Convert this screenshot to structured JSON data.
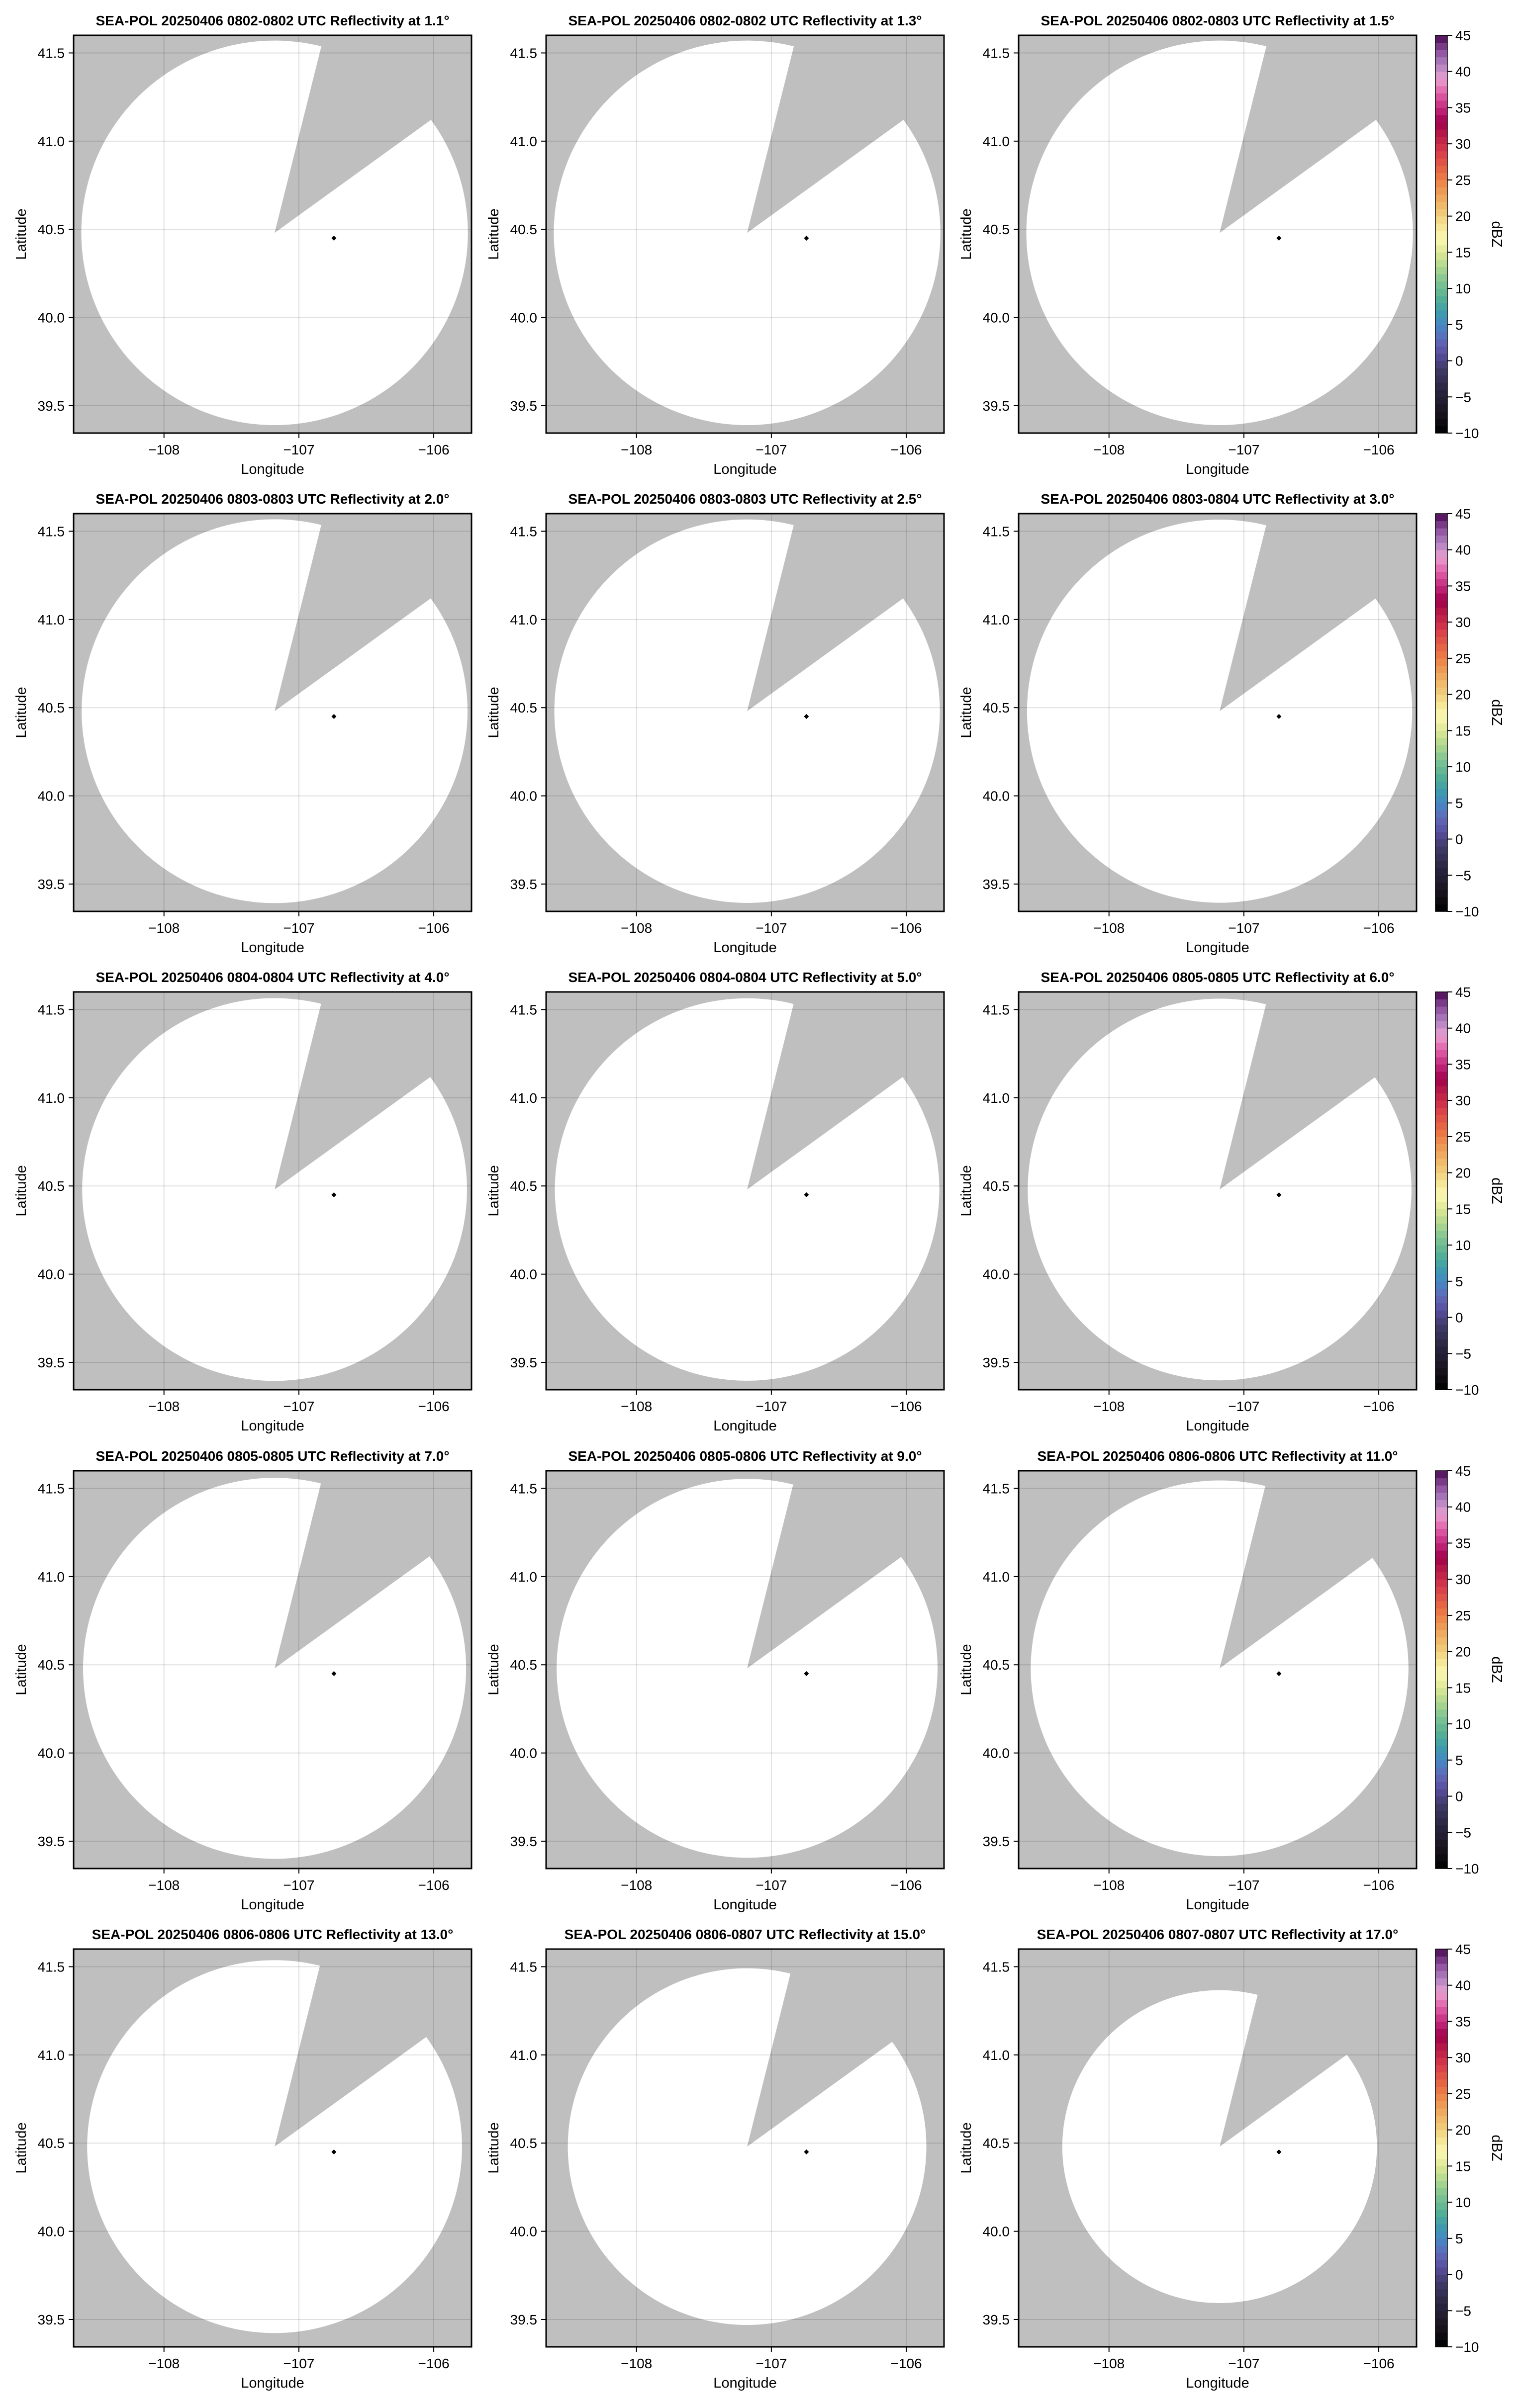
{
  "chart_data": {
    "type": "heatmap",
    "layout": {
      "rows": 5,
      "cols": 3
    },
    "xlabel": "Longitude",
    "ylabel": "Latitude",
    "xlim": [
      -108.67,
      -105.72
    ],
    "ylim": [
      39.345,
      41.6
    ],
    "xticks": [
      -108,
      -107,
      -106
    ],
    "xtick_labels": [
      "−108",
      "−107",
      "−106"
    ],
    "yticks": [
      39.5,
      40.0,
      40.5,
      41.0,
      41.5
    ],
    "ytick_labels": [
      "39.5",
      "40.0",
      "40.5",
      "41.0",
      "41.5"
    ],
    "grid": true,
    "missing_color": "#bfbfbf",
    "coverage_color": "#ffffff",
    "coverage_center": [
      -107.18,
      40.48
    ],
    "blocked_sector_azimuth_deg": [
      14,
      54
    ],
    "marker": {
      "lon": -106.74,
      "lat": 40.45,
      "shape": "diamond",
      "color": "#000000"
    },
    "panels": [
      {
        "title": "SEA-POL 20250406 0802-0802 UTC Reflectivity at 1.1°",
        "elevation": 1.1,
        "range_deg_lat": 1.09,
        "colorbar": false
      },
      {
        "title": "SEA-POL 20250406 0802-0802 UTC Reflectivity at 1.3°",
        "elevation": 1.3,
        "range_deg_lat": 1.09,
        "colorbar": false
      },
      {
        "title": "SEA-POL 20250406 0802-0803 UTC Reflectivity at 1.5°",
        "elevation": 1.5,
        "range_deg_lat": 1.09,
        "colorbar": true
      },
      {
        "title": "SEA-POL 20250406 0803-0803 UTC Reflectivity at 2.0°",
        "elevation": 2.0,
        "range_deg_lat": 1.088,
        "colorbar": false
      },
      {
        "title": "SEA-POL 20250406 0803-0803 UTC Reflectivity at 2.5°",
        "elevation": 2.5,
        "range_deg_lat": 1.087,
        "colorbar": false
      },
      {
        "title": "SEA-POL 20250406 0803-0804 UTC Reflectivity at 3.0°",
        "elevation": 3.0,
        "range_deg_lat": 1.086,
        "colorbar": true
      },
      {
        "title": "SEA-POL 20250406 0804-0804 UTC Reflectivity at 4.0°",
        "elevation": 4.0,
        "range_deg_lat": 1.085,
        "colorbar": false
      },
      {
        "title": "SEA-POL 20250406 0804-0804 UTC Reflectivity at 5.0°",
        "elevation": 5.0,
        "range_deg_lat": 1.084,
        "colorbar": false
      },
      {
        "title": "SEA-POL 20250406 0805-0805 UTC Reflectivity at 6.0°",
        "elevation": 6.0,
        "range_deg_lat": 1.082,
        "colorbar": true
      },
      {
        "title": "SEA-POL 20250406 0805-0805 UTC Reflectivity at 7.0°",
        "elevation": 7.0,
        "range_deg_lat": 1.08,
        "colorbar": false
      },
      {
        "title": "SEA-POL 20250406 0805-0806 UTC Reflectivity at 9.0°",
        "elevation": 9.0,
        "range_deg_lat": 1.074,
        "colorbar": false
      },
      {
        "title": "SEA-POL 20250406 0806-0806 UTC Reflectivity at 11.0°",
        "elevation": 11.0,
        "range_deg_lat": 1.065,
        "colorbar": true
      },
      {
        "title": "SEA-POL 20250406 0806-0806 UTC Reflectivity at 13.0°",
        "elevation": 13.0,
        "range_deg_lat": 1.057,
        "colorbar": false
      },
      {
        "title": "SEA-POL 20250406 0806-0807 UTC Reflectivity at 15.0°",
        "elevation": 15.0,
        "range_deg_lat": 1.011,
        "colorbar": false
      },
      {
        "title": "SEA-POL 20250406 0807-0807 UTC Reflectivity at 17.0°",
        "elevation": 17.0,
        "range_deg_lat": 0.887,
        "colorbar": true
      }
    ],
    "colorbar": {
      "label": "dBZ",
      "range": [
        -10,
        45
      ],
      "ticks": [
        45,
        40,
        35,
        30,
        25,
        20,
        15,
        10,
        5,
        0,
        -5,
        -10
      ],
      "tick_labels": [
        "45",
        "40",
        "35",
        "30",
        "25",
        "20",
        "15",
        "10",
        "5",
        "0",
        "−5",
        "−10"
      ],
      "colormap_anchors": [
        [
          -10,
          "#000000"
        ],
        [
          -7,
          "#1a1420"
        ],
        [
          -4,
          "#2a2540"
        ],
        [
          -1,
          "#3f3a6a"
        ],
        [
          1,
          "#5a4ea0"
        ],
        [
          3,
          "#5f6ab8"
        ],
        [
          5,
          "#4488c4"
        ],
        [
          7,
          "#3fa0a8"
        ],
        [
          9,
          "#5ab392"
        ],
        [
          11,
          "#80c493"
        ],
        [
          13,
          "#b0d68e"
        ],
        [
          15,
          "#dde896"
        ],
        [
          17,
          "#fbf8b5"
        ],
        [
          19,
          "#f4e08e"
        ],
        [
          21,
          "#f0c070"
        ],
        [
          23,
          "#eea35c"
        ],
        [
          25,
          "#ee8048"
        ],
        [
          27,
          "#e25c44"
        ],
        [
          29,
          "#d63a4a"
        ],
        [
          31,
          "#bc1e48"
        ],
        [
          33,
          "#a0004a"
        ],
        [
          35,
          "#c42a80"
        ],
        [
          37,
          "#e060a8"
        ],
        [
          39,
          "#e8a0d0"
        ],
        [
          41,
          "#b080c0"
        ],
        [
          43,
          "#8a4a9a"
        ],
        [
          45,
          "#4a0a50"
        ]
      ]
    }
  }
}
